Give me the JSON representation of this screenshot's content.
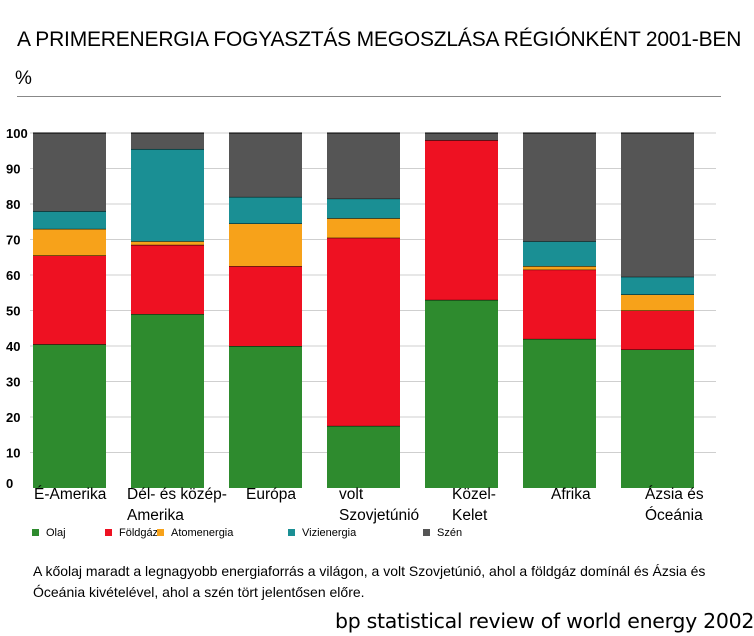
{
  "chart_data": {
    "type": "bar",
    "stacked": true,
    "title": "A PRIMERENERGIA FOGYASZTÁS MEGOSZLÁSA RÉGIÓNKÉNT 2001-BEN",
    "ylabel": "%",
    "ylim": [
      0,
      100
    ],
    "yticks": [
      0,
      10,
      20,
      30,
      40,
      50,
      60,
      70,
      80,
      90,
      100
    ],
    "grid": true,
    "legend_position": "bottom",
    "categories": [
      "É-Amerika",
      "Dél- és közép-\nAmerika",
      "Európa",
      "volt\nSzovjetúnió",
      "Közel-\nKelet",
      "Afrika",
      "Ázsia és\nÓceánia"
    ],
    "series": [
      {
        "name": "Olaj",
        "color": "#2e8b2e",
        "values": [
          40.5,
          49,
          40,
          17.5,
          53,
          42,
          39
        ]
      },
      {
        "name": "Földgáz",
        "color": "#ee1122",
        "values": [
          25,
          19.5,
          22.5,
          53,
          45,
          19.5,
          11
        ]
      },
      {
        "name": "Atomenergia",
        "color": "#f7a21a",
        "values": [
          7.5,
          1,
          12,
          5.5,
          0,
          1,
          4.5
        ]
      },
      {
        "name": "Vizienergia",
        "color": "#1a8f94",
        "values": [
          5,
          26,
          7.5,
          5.5,
          0,
          7,
          5
        ]
      },
      {
        "name": "Szén",
        "color": "#555555",
        "values": [
          22,
          4.5,
          18,
          18.5,
          2,
          30.5,
          40.5
        ]
      }
    ]
  },
  "caption": "A kőolaj maradt a legnagyobb energiaforrás a világon, a volt Szovjetúnió, ahol a földgáz domínál és Ázsia és Óceánia kivételével, ahol a szén tört jelentősen előre.",
  "source": "bp statistical review of world energy 2002"
}
